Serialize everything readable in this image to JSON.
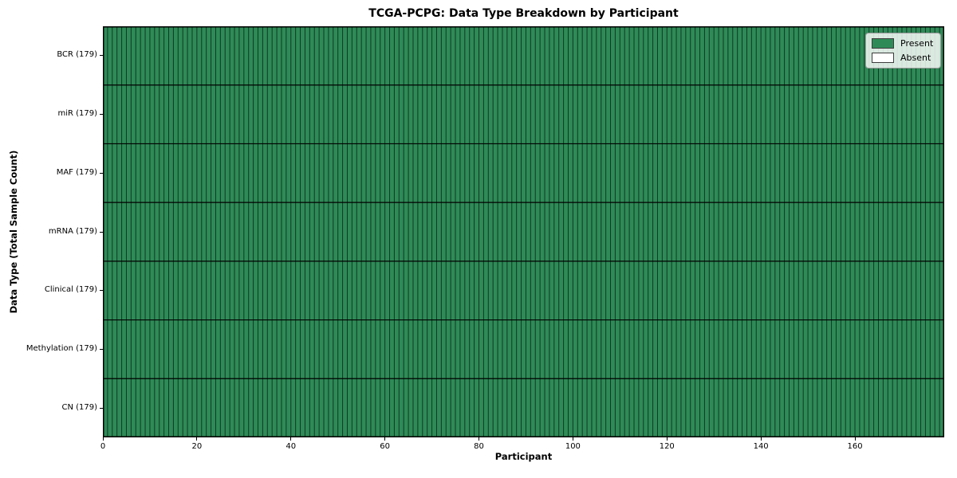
{
  "chart_data": {
    "type": "heatmap",
    "title": "TCGA-PCPG: Data Type Breakdown by Participant",
    "xlabel": "Participant",
    "ylabel": "Data Type (Total Sample Count)",
    "n_participants": 179,
    "x_range": [
      0,
      179
    ],
    "x_ticks": [
      0,
      20,
      40,
      60,
      80,
      100,
      120,
      140,
      160
    ],
    "rows": [
      {
        "label": "BCR (179)",
        "data_type": "BCR",
        "total_samples": 179,
        "present_count": 179
      },
      {
        "label": "miR (179)",
        "data_type": "miR",
        "total_samples": 179,
        "present_count": 179
      },
      {
        "label": "MAF (179)",
        "data_type": "MAF",
        "total_samples": 179,
        "present_count": 179
      },
      {
        "label": "mRNA (179)",
        "data_type": "mRNA",
        "total_samples": 179,
        "present_count": 179
      },
      {
        "label": "Clinical (179)",
        "data_type": "Clinical",
        "total_samples": 179,
        "present_count": 179
      },
      {
        "label": "Methylation (179)",
        "data_type": "Methylation",
        "total_samples": 179,
        "present_count": 179
      },
      {
        "label": "CN (179)",
        "data_type": "CN",
        "total_samples": 179,
        "present_count": 179
      }
    ],
    "legend": [
      {
        "label": "Present",
        "color": "#2e8b57"
      },
      {
        "label": "Absent",
        "color": "#ffffff"
      }
    ],
    "legend_position": "upper right",
    "grid": false,
    "colors": {
      "present": "#2e8b57",
      "absent": "#ffffff",
      "cell_edge": "rgba(0,0,0,0.6)",
      "row_separator": "#000000",
      "plot_border": "#000000",
      "background": "#ffffff"
    }
  }
}
